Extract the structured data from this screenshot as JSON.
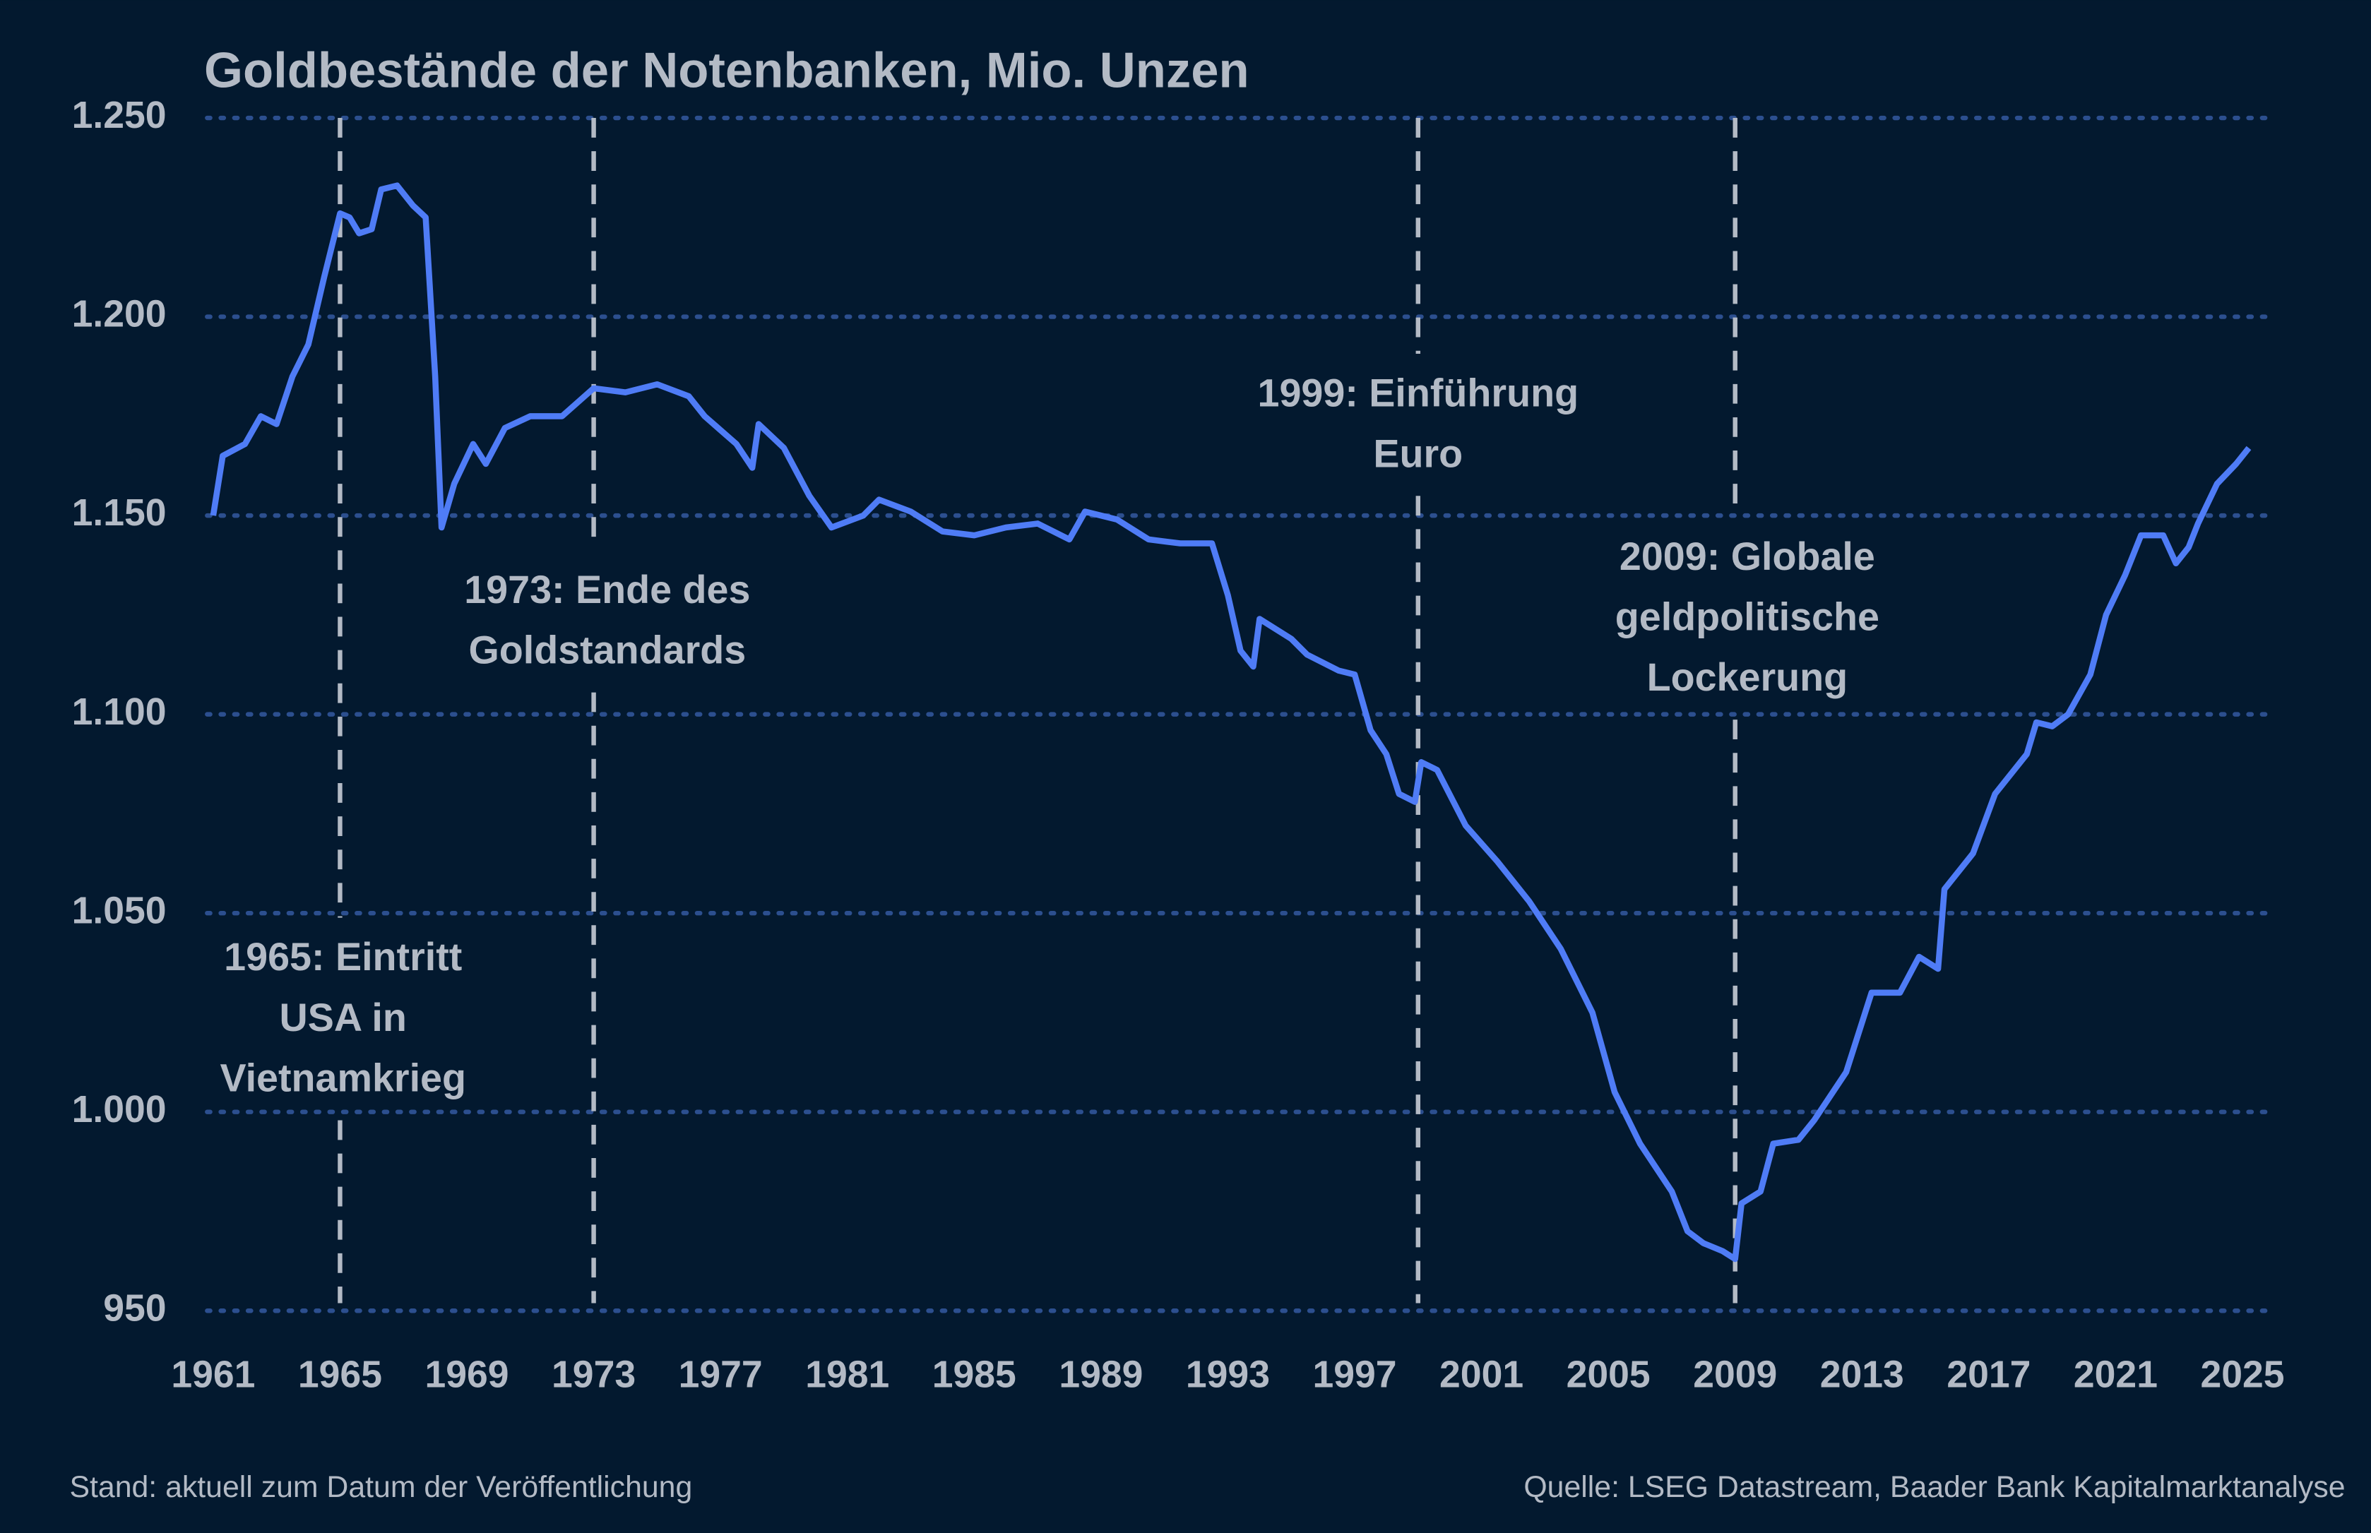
{
  "chart_data": {
    "type": "line",
    "title": "Goldbestände der Notenbanken, Mio. Unzen",
    "note": "Stand: aktuell zum Datum der Veröffentlichung",
    "source": "Quelle: LSEG Datastream, Baader Bank Kapitalmarktanalyse",
    "xlim": [
      1961,
      2025
    ],
    "xticks": [
      1961,
      1965,
      1969,
      1973,
      1977,
      1981,
      1985,
      1989,
      1993,
      1997,
      2001,
      2005,
      2009,
      2013,
      2017,
      2021,
      2025
    ],
    "ylim": [
      950,
      1250
    ],
    "yticks": [
      950,
      {
        "value": 1000,
        "label": "1.000"
      },
      {
        "value": 1050,
        "label": "1.050"
      },
      {
        "value": 1100,
        "label": "1.100"
      },
      {
        "value": 1150,
        "label": "1.150"
      },
      {
        "value": 1200,
        "label": "1.200"
      },
      {
        "value": 1250,
        "label": "1.250"
      }
    ],
    "grid": true,
    "events": [
      {
        "x": 1965,
        "label": [
          "1965: Eintritt",
          "USA in",
          "Vietnamkrieg"
        ]
      },
      {
        "x": 1973,
        "label": [
          "1973: Ende des",
          "Goldstandards"
        ]
      },
      {
        "x": 1999,
        "label": [
          "1999: Einführung",
          "Euro"
        ]
      },
      {
        "x": 2009,
        "label": [
          "2009: Globale",
          "geldpolitische",
          "Lockerung"
        ]
      }
    ],
    "series": [
      {
        "name": "Goldbestände",
        "color": "#4f7cf6",
        "x": [
          1961.0,
          1961.3,
          1962,
          1962.5,
          1963,
          1963.5,
          1964,
          1964.5,
          1965.0,
          1965.3,
          1965.6,
          1966,
          1966.3,
          1966.8,
          1967.3,
          1967.7,
          1968.0,
          1968.2,
          1968.6,
          1969.2,
          1969.6,
          1970.2,
          1971,
          1972,
          1973,
          1974,
          1975,
          1976,
          1976.5,
          1977.5,
          1978,
          1978.2,
          1979,
          1979.8,
          1980.5,
          1981.5,
          1982,
          1983,
          1984,
          1985,
          1986,
          1987,
          1988,
          1988.5,
          1989.5,
          1990.5,
          1991.5,
          1992.5,
          1993,
          1993.4,
          1993.8,
          1994,
          1995,
          1995.5,
          1996.5,
          1997,
          1997.5,
          1998,
          1998.4,
          1998.9,
          1999.1,
          1999.6,
          2000.5,
          2001.5,
          2002.5,
          2003.5,
          2004.5,
          2005.2,
          2006,
          2007,
          2007.5,
          2008,
          2008.6,
          2009,
          2009.2,
          2009.8,
          2010.2,
          2011,
          2011.5,
          2012.5,
          2013.3,
          2014.2,
          2014.8,
          2015.4,
          2015.6,
          2016.5,
          2017.2,
          2018.2,
          2018.5,
          2019,
          2019.5,
          2020.2,
          2020.7,
          2021.3,
          2021.8,
          2022.5,
          2022.9,
          2023.3,
          2023.6,
          2024.2,
          2024.8,
          2025.2
        ],
        "values": [
          1150,
          1165,
          1168,
          1175,
          1173,
          1185,
          1193,
          1210,
          1226,
          1225,
          1221,
          1222,
          1232,
          1233,
          1228,
          1225,
          1185,
          1147,
          1158,
          1168,
          1163,
          1172,
          1175,
          1175,
          1182,
          1181,
          1183,
          1180,
          1175,
          1168,
          1162,
          1173,
          1167,
          1155,
          1147,
          1150,
          1154,
          1151,
          1146,
          1145,
          1147,
          1148,
          1144,
          1151,
          1149,
          1144,
          1143,
          1143,
          1130,
          1116,
          1112,
          1124,
          1119,
          1115,
          1111,
          1110,
          1096,
          1090,
          1080,
          1078,
          1088,
          1086,
          1072,
          1063,
          1053,
          1041,
          1025,
          1005,
          992,
          980,
          970,
          967,
          965,
          963,
          977,
          980,
          992,
          993,
          998,
          1010,
          1030,
          1030,
          1039,
          1036,
          1056,
          1065,
          1080,
          1090,
          1098,
          1097,
          1100,
          1110,
          1125,
          1135,
          1145,
          1145,
          1138,
          1142,
          1148,
          1158,
          1163,
          1167
        ]
      }
    ]
  }
}
